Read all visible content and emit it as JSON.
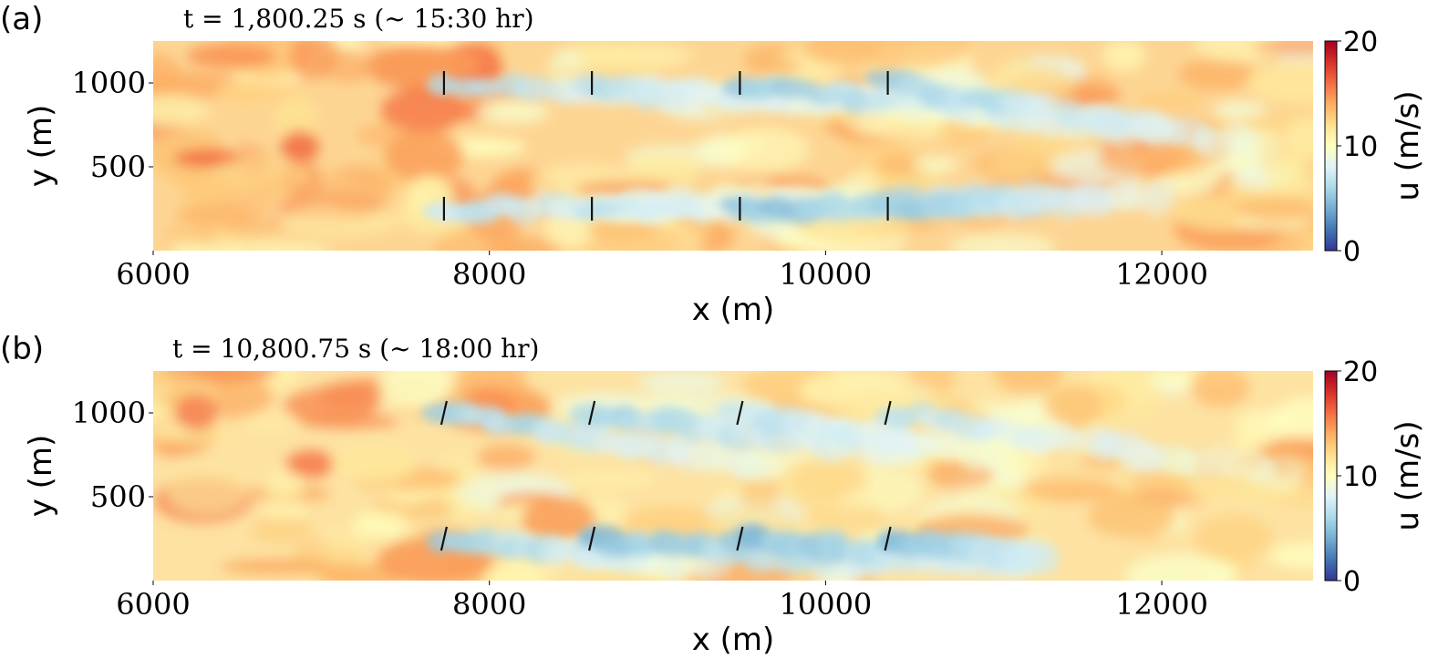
{
  "chart_data": [
    {
      "type": "heatmap",
      "panel_label": "(a)",
      "title": "t = 1,800.25 s (~ 15:30 hr)",
      "xlabel": "x (m)",
      "ylabel": "y (m)",
      "xlim": [
        6000,
        12900
      ],
      "ylim": [
        0,
        1250
      ],
      "xticks": [
        6000,
        8000,
        10000,
        12000
      ],
      "yticks": [
        500,
        1000
      ],
      "colorbar": {
        "label": "u (m/s)",
        "range": [
          0,
          20
        ],
        "ticks": [
          0,
          10,
          20
        ]
      },
      "turbines": [
        {
          "x": 7730,
          "y": 1000
        },
        {
          "x": 8610,
          "y": 1000
        },
        {
          "x": 9490,
          "y": 1000
        },
        {
          "x": 10370,
          "y": 1000
        },
        {
          "x": 7730,
          "y": 250
        },
        {
          "x": 8610,
          "y": 250
        },
        {
          "x": 9490,
          "y": 250
        },
        {
          "x": 10370,
          "y": 250
        }
      ],
      "wakes": [
        {
          "x0": 7730,
          "y0": 1000,
          "x1": 11200,
          "y1": 820,
          "u_min": 6
        },
        {
          "x0": 8610,
          "y0": 1000,
          "x1": 11200,
          "y1": 820,
          "u_min": 6
        },
        {
          "x0": 9490,
          "y0": 1000,
          "x1": 12000,
          "y1": 700,
          "u_min": 5
        },
        {
          "x0": 10370,
          "y0": 1000,
          "x1": 12600,
          "y1": 620,
          "u_min": 5
        },
        {
          "x0": 7730,
          "y0": 250,
          "x1": 9800,
          "y1": 300,
          "u_min": 6
        },
        {
          "x0": 8610,
          "y0": 250,
          "x1": 10300,
          "y1": 280,
          "u_min": 6
        },
        {
          "x0": 9490,
          "y0": 250,
          "x1": 11200,
          "y1": 300,
          "u_min": 4
        },
        {
          "x0": 10370,
          "y0": 250,
          "x1": 12000,
          "y1": 330,
          "u_min": 5
        }
      ]
    },
    {
      "type": "heatmap",
      "panel_label": "(b)",
      "title": "t = 10,800.75 s (~ 18:00 hr)",
      "xlabel": "x (m)",
      "ylabel": "y (m)",
      "xlim": [
        6000,
        12900
      ],
      "ylim": [
        0,
        1250
      ],
      "xticks": [
        6000,
        8000,
        10000,
        12000
      ],
      "yticks": [
        500,
        1000
      ],
      "colorbar": {
        "label": "u (m/s)",
        "range": [
          0,
          20
        ],
        "ticks": [
          0,
          10,
          20
        ]
      },
      "turbines": [
        {
          "x": 7730,
          "y": 1000
        },
        {
          "x": 8610,
          "y": 1000
        },
        {
          "x": 9490,
          "y": 1000
        },
        {
          "x": 10370,
          "y": 1000
        },
        {
          "x": 7730,
          "y": 250
        },
        {
          "x": 8610,
          "y": 250
        },
        {
          "x": 9490,
          "y": 250
        },
        {
          "x": 10370,
          "y": 250
        }
      ],
      "wakes": [
        {
          "x0": 7730,
          "y0": 1000,
          "x1": 9600,
          "y1": 700,
          "u_min": 5
        },
        {
          "x0": 8610,
          "y0": 1000,
          "x1": 10500,
          "y1": 760,
          "u_min": 5
        },
        {
          "x0": 9490,
          "y0": 1000,
          "x1": 11200,
          "y1": 720,
          "u_min": 6
        },
        {
          "x0": 10370,
          "y0": 1000,
          "x1": 12700,
          "y1": 640,
          "u_min": 6
        },
        {
          "x0": 7730,
          "y0": 250,
          "x1": 9300,
          "y1": 100,
          "u_min": 5
        },
        {
          "x0": 8610,
          "y0": 250,
          "x1": 10300,
          "y1": 100,
          "u_min": 4
        },
        {
          "x0": 9490,
          "y0": 250,
          "x1": 10900,
          "y1": 120,
          "u_min": 4
        },
        {
          "x0": 10370,
          "y0": 250,
          "x1": 11300,
          "y1": 120,
          "u_min": 4
        }
      ]
    }
  ]
}
